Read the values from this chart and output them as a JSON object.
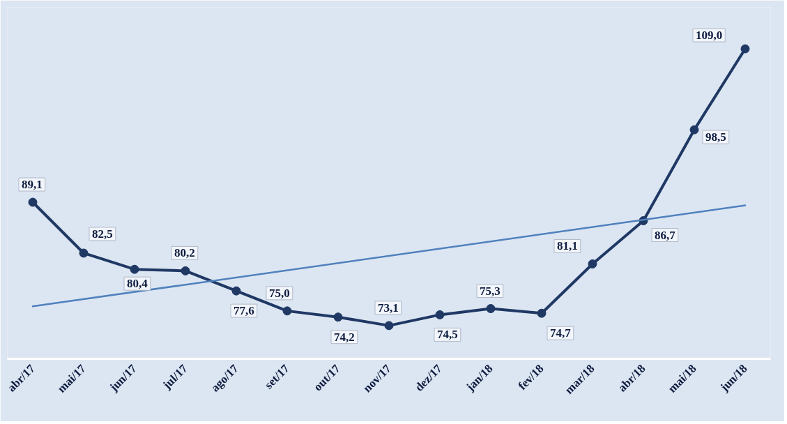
{
  "chart_data": {
    "type": "line",
    "categories": [
      "abr/17",
      "mai/17",
      "jun/17",
      "jul/17",
      "ago/17",
      "set/17",
      "out/17",
      "nov/17",
      "dez/17",
      "jan/18",
      "fev/18",
      "mar/18",
      "abr/18",
      "mai/18",
      "jun/18"
    ],
    "series": [
      {
        "color": "#1f3864",
        "values": [
          89.1,
          82.5,
          80.4,
          80.2,
          77.6,
          75.0,
          74.2,
          73.1,
          74.5,
          75.3,
          74.7,
          81.1,
          86.7,
          98.5,
          109.0
        ],
        "marker": "circle",
        "value_labels": [
          "89,1",
          "82,5",
          "80,4",
          "80,2",
          "77,6",
          "75,0",
          "74,2",
          "73,1",
          "74,5",
          "75,3",
          "74,7",
          "81,1",
          "86,7",
          "98,5",
          "109,0"
        ]
      },
      {
        "type": "line",
        "color": "#4f81bd",
        "x": [
          "abr/17",
          "jun/18"
        ],
        "values": [
          75.6,
          88.7
        ],
        "marker": "none"
      }
    ],
    "line_style": "solid"
  }
}
